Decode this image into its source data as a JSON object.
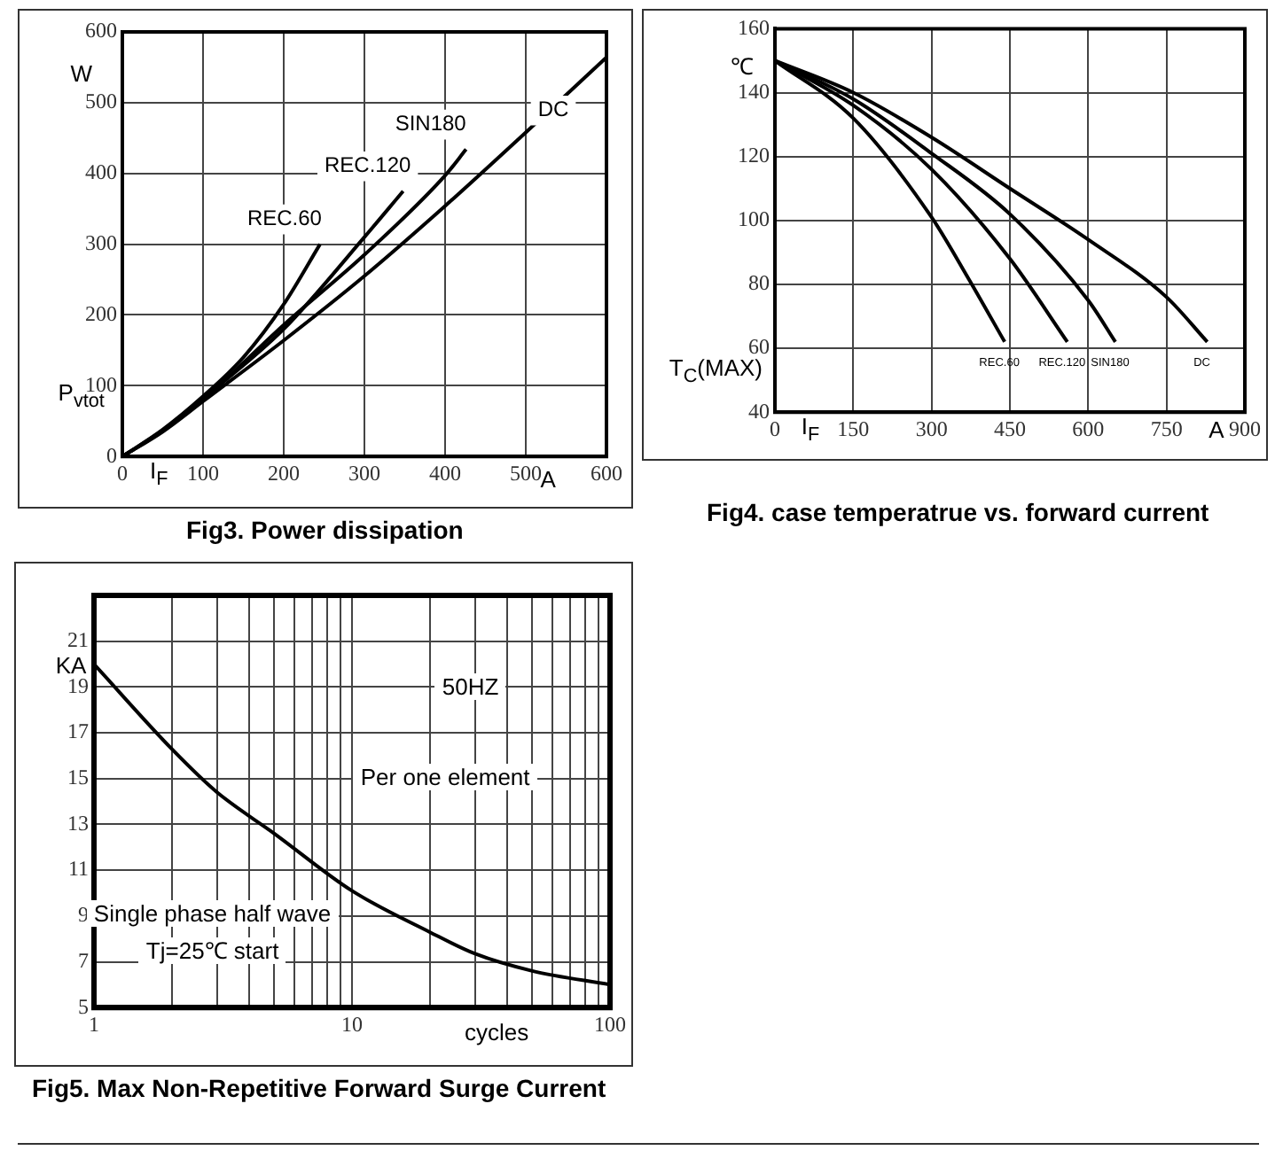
{
  "chart_data": [
    {
      "type": "line",
      "title": "Fig3. Power dissipation",
      "xlabel": "I$_{F}$",
      "ylabel": "P$_{vtot}$",
      "annotations": [
        "W",
        "A"
      ],
      "xlim": [
        0,
        600
      ],
      "ylim": [
        0,
        600
      ],
      "xticks": [
        0,
        100,
        200,
        300,
        400,
        500,
        600
      ],
      "yticks": [
        0,
        100,
        200,
        300,
        400,
        500,
        600
      ],
      "grid": true,
      "marker": "none",
      "line_style": "solid",
      "series": [
        {
          "name": "REC.60",
          "color": "#000000",
          "x": [
            0,
            50,
            100,
            150,
            200,
            245
          ],
          "values": [
            0,
            38,
            85,
            140,
            215,
            300
          ]
        },
        {
          "name": "REC.120",
          "color": "#000000",
          "x": [
            0,
            50,
            100,
            200,
            300,
            348
          ],
          "values": [
            0,
            37,
            82,
            180,
            310,
            375
          ]
        },
        {
          "name": "SIN180",
          "color": "#000000",
          "x": [
            0,
            50,
            100,
            200,
            300,
            400,
            426
          ],
          "values": [
            0,
            36,
            80,
            186,
            285,
            397,
            434
          ]
        },
        {
          "name": "DC",
          "color": "#000000",
          "x": [
            0,
            50,
            100,
            200,
            300,
            400,
            500,
            600
          ],
          "values": [
            0,
            35,
            78,
            164,
            255,
            354,
            458,
            564
          ]
        }
      ]
    },
    {
      "type": "line",
      "title": "Fig4. case temperatrue vs. forward current",
      "xlabel": "I$_{F}$",
      "ylabel": "T$_{C}$(MAX)",
      "annotations": [
        "℃",
        "A"
      ],
      "xlim": [
        0,
        900
      ],
      "ylim": [
        40,
        160
      ],
      "xticks": [
        0,
        150,
        300,
        450,
        600,
        750,
        900
      ],
      "yticks": [
        40,
        60,
        80,
        100,
        120,
        140,
        160
      ],
      "grid": true,
      "marker": "none",
      "line_style": "solid",
      "series": [
        {
          "name": "REC.60",
          "color": "#000000",
          "x": [
            0,
            150,
            300,
            370,
            440
          ],
          "values": [
            150,
            132,
            101,
            82,
            62
          ]
        },
        {
          "name": "REC.120",
          "color": "#000000",
          "x": [
            0,
            150,
            300,
            450,
            560
          ],
          "values": [
            150,
            136,
            116,
            88,
            62
          ]
        },
        {
          "name": "SIN180",
          "color": "#000000",
          "x": [
            0,
            150,
            300,
            450,
            600,
            652
          ],
          "values": [
            150,
            138,
            121,
            102,
            75,
            62
          ]
        },
        {
          "name": "DC",
          "color": "#000000",
          "x": [
            0,
            150,
            300,
            450,
            600,
            750,
            828
          ],
          "values": [
            150,
            140,
            126,
            110,
            94,
            76,
            62
          ]
        }
      ]
    },
    {
      "type": "line",
      "title": "Fig5. Max Non-Repetitive Forward Surge Current",
      "xlabel": "cycles",
      "ylabel": "KA",
      "annotations": [
        "50HZ",
        "Per one element",
        "Single phase half wave",
        "Tj=25℃  start"
      ],
      "log": "x",
      "xlim": [
        1,
        100
      ],
      "ylim": [
        5,
        23
      ],
      "xticks": [
        1,
        {
          "value": 2,
          "label": null
        },
        {
          "value": 3,
          "label": null
        },
        {
          "value": 4,
          "label": null
        },
        {
          "value": 5,
          "label": null
        },
        {
          "value": 6,
          "label": null
        },
        {
          "value": 7,
          "label": null
        },
        {
          "value": 8,
          "label": null
        },
        {
          "value": 9,
          "label": null
        },
        10,
        {
          "value": 20,
          "label": null
        },
        {
          "value": 30,
          "label": null
        },
        {
          "value": 40,
          "label": null
        },
        {
          "value": 50,
          "label": null
        },
        {
          "value": 60,
          "label": null
        },
        {
          "value": 70,
          "label": null
        },
        {
          "value": 80,
          "label": null
        },
        {
          "value": 90,
          "label": null
        },
        100
      ],
      "yticks": [
        5,
        7,
        9,
        11,
        13,
        15,
        17,
        19,
        21
      ],
      "grid": true,
      "marker": "none",
      "line_style": "solid",
      "series": [
        {
          "color": "#000000",
          "x": [
            1,
            2,
            3,
            5,
            10,
            20,
            30,
            50,
            100
          ],
          "values": [
            20,
            16.3,
            14.4,
            12.6,
            10.1,
            8.3,
            7.35,
            6.6,
            6
          ]
        }
      ]
    }
  ]
}
